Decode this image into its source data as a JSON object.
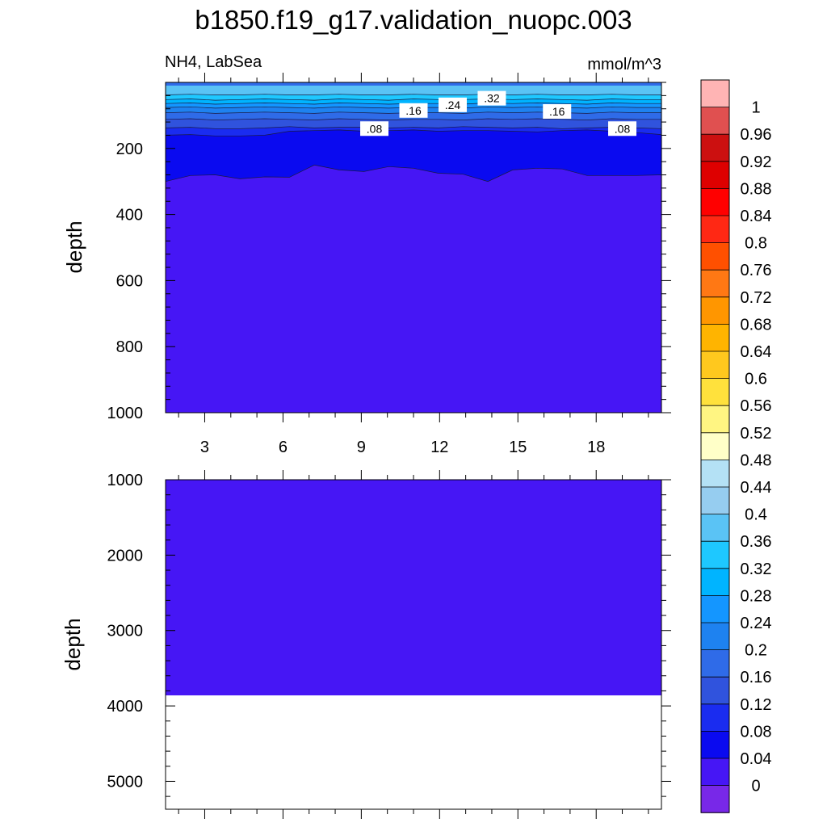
{
  "figure": {
    "title": "b1850.f19_g17.validation_nuopc.003",
    "left_subtitle": "NH4, LabSea",
    "right_subtitle": "mmol/m^3"
  },
  "chart_data": [
    {
      "type": "heatmap",
      "panel": "upper",
      "variable": "NH4",
      "region": "LabSea",
      "units": "mmol/m^3",
      "xlabel": "",
      "ylabel": "depth",
      "xlim": [
        1.5,
        20.5
      ],
      "ylim": [
        0,
        1000
      ],
      "y_reversed": true,
      "xticks": [
        3,
        6,
        9,
        12,
        15,
        18
      ],
      "yticks": [
        200,
        400,
        600,
        800,
        1000
      ],
      "contour_labels": [
        {
          "text": ".32",
          "x": 14.0,
          "depth": 48
        },
        {
          "text": ".24",
          "x": 12.5,
          "depth": 68
        },
        {
          "text": ".16",
          "x": 11.0,
          "depth": 85
        },
        {
          "text": ".16",
          "x": 16.5,
          "depth": 88
        },
        {
          "text": ".08",
          "x": 9.5,
          "depth": 140
        },
        {
          "text": ".08",
          "x": 19.0,
          "depth": 140
        }
      ],
      "layers": [
        {
          "value": 0.32,
          "color": "#1ec8ff",
          "boundary_depth": [
            38,
            36,
            38,
            38,
            36,
            38,
            38,
            36,
            38,
            38,
            36,
            38,
            38,
            36,
            38,
            36,
            38,
            38,
            36,
            38,
            38
          ]
        },
        {
          "value": 0.28,
          "color": "#00b4ff",
          "boundary_depth": [
            52,
            50,
            54,
            52,
            50,
            52,
            54,
            50,
            52,
            54,
            50,
            52,
            52,
            50,
            52,
            50,
            52,
            54,
            50,
            52,
            52
          ]
        },
        {
          "value": 0.24,
          "color": "#1496ff",
          "boundary_depth": [
            64,
            62,
            66,
            64,
            62,
            64,
            66,
            62,
            64,
            66,
            64,
            64,
            66,
            62,
            64,
            62,
            64,
            66,
            62,
            64,
            64
          ]
        },
        {
          "value": 0.2,
          "color": "#1e82f0",
          "boundary_depth": [
            76,
            74,
            78,
            76,
            74,
            76,
            78,
            74,
            76,
            78,
            76,
            76,
            78,
            74,
            76,
            74,
            76,
            78,
            74,
            76,
            76
          ]
        },
        {
          "value": 0.16,
          "color": "#2f6be8",
          "boundary_depth": [
            92,
            90,
            94,
            92,
            90,
            92,
            94,
            90,
            92,
            94,
            92,
            92,
            94,
            90,
            92,
            90,
            92,
            94,
            90,
            92,
            92
          ]
        },
        {
          "value": 0.12,
          "color": "#3053dd",
          "boundary_depth": [
            112,
            110,
            114,
            112,
            110,
            112,
            114,
            110,
            112,
            114,
            112,
            112,
            114,
            110,
            112,
            110,
            112,
            114,
            110,
            112,
            112
          ]
        },
        {
          "value": 0.08,
          "color": "#1a2cf0",
          "boundary_depth": [
            138,
            136,
            140,
            140,
            138,
            134,
            138,
            136,
            136,
            138,
            136,
            138,
            134,
            136,
            138,
            136,
            140,
            138,
            136,
            138,
            140
          ]
        },
        {
          "value": 0.04,
          "color": "#0a0af0",
          "boundary_depth": [
            160,
            158,
            162,
            162,
            160,
            148,
            146,
            144,
            148,
            146,
            144,
            148,
            146,
            146,
            148,
            150,
            146,
            144,
            148,
            152,
            158
          ]
        },
        {
          "value": 0.0,
          "color": "#4616f5",
          "boundary_depth": [
            300,
            282,
            280,
            292,
            286,
            287,
            250,
            265,
            270,
            255,
            260,
            275,
            278,
            300,
            265,
            260,
            262,
            282,
            282,
            282,
            280
          ]
        }
      ]
    },
    {
      "type": "heatmap",
      "panel": "lower",
      "variable": "NH4",
      "region": "LabSea",
      "units": "mmol/m^3",
      "xlabel": "",
      "ylabel": "depth",
      "xlim": [
        1.5,
        20.5
      ],
      "ylim": [
        1000,
        5370
      ],
      "y_reversed": true,
      "xticks": [
        3,
        6,
        9,
        12,
        15,
        18
      ],
      "yticks": [
        1000,
        2000,
        3000,
        4000,
        5000
      ],
      "fill_value": 0.0,
      "fill_color": "#4616f5",
      "bottom_depth": 3860
    }
  ],
  "colorbar": {
    "levels": [
      "1",
      "0.96",
      "0.92",
      "0.88",
      "0.84",
      "0.8",
      "0.76",
      "0.72",
      "0.68",
      "0.64",
      "0.6",
      "0.56",
      "0.52",
      "0.48",
      "0.44",
      "0.4",
      "0.36",
      "0.32",
      "0.28",
      "0.24",
      "0.2",
      "0.16",
      "0.12",
      "0.08",
      "0.04",
      "0"
    ],
    "colors": [
      "#ffb4b4",
      "#e05050",
      "#cc1010",
      "#de0000",
      "#ff0000",
      "#ff2814",
      "#ff5000",
      "#ff7814",
      "#ff9600",
      "#ffb400",
      "#ffc81e",
      "#ffe13c",
      "#fff582",
      "#ffffc8",
      "#b4e1f5",
      "#96cdf0",
      "#5ac3f5",
      "#1ec8ff",
      "#00b4ff",
      "#1496ff",
      "#1e82f0",
      "#2f6be8",
      "#3053dd",
      "#1a2cf0",
      "#0a0af0",
      "#4616f5",
      "#7828e8"
    ]
  }
}
